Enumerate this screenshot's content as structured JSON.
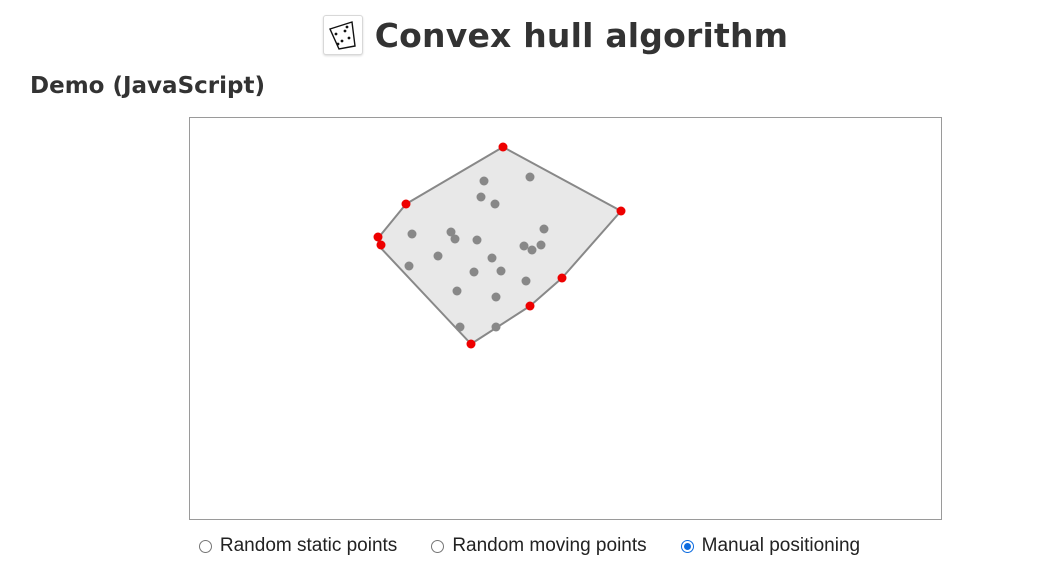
{
  "header": {
    "title": "Convex hull algorithm",
    "logo_icon": "convex-hull-icon"
  },
  "section": {
    "title": "Demo (JavaScript)"
  },
  "demo": {
    "colors": {
      "hull_fill": "#e8e8e8",
      "hull_stroke": "#888888",
      "hull_point": "#ee0000",
      "interior_point": "#888888"
    }
  },
  "modes": {
    "options": [
      {
        "label": "Random static points",
        "checked": false
      },
      {
        "label": "Random moving points",
        "checked": false
      },
      {
        "label": "Manual positioning",
        "checked": true
      }
    ]
  }
}
